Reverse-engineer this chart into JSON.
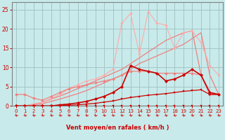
{
  "xlabel": "Vent moyen/en rafales ( km/h )",
  "xlim": [
    -0.5,
    23.5
  ],
  "ylim": [
    0,
    27
  ],
  "yticks": [
    0,
    5,
    10,
    15,
    20,
    25
  ],
  "xticks": [
    0,
    1,
    2,
    3,
    4,
    5,
    6,
    7,
    8,
    9,
    10,
    11,
    12,
    13,
    14,
    15,
    16,
    17,
    18,
    19,
    20,
    21,
    22,
    23
  ],
  "bg_color": "#c8eaea",
  "grid_color": "#a0c0c0",
  "lines": [
    {
      "x": [
        0,
        1,
        2,
        3,
        4,
        5,
        6,
        7,
        8,
        9,
        10,
        11,
        12,
        13,
        14,
        15,
        16,
        17,
        18,
        19,
        20,
        21,
        22,
        23
      ],
      "y": [
        0,
        0,
        0,
        0,
        0,
        0,
        0,
        0,
        0,
        0,
        0,
        0,
        0,
        0,
        0,
        0,
        0,
        0,
        0,
        0,
        0,
        0,
        0,
        0
      ],
      "color": "#cc0000",
      "lw": 0.8,
      "marker": "s",
      "ms": 2.0,
      "zorder": 6
    },
    {
      "x": [
        0,
        1,
        2,
        3,
        4,
        5,
        6,
        7,
        8,
        9,
        10,
        11,
        12,
        13,
        14,
        15,
        16,
        17,
        18,
        19,
        20,
        21,
        22,
        23
      ],
      "y": [
        0,
        0,
        0,
        0,
        0,
        0.1,
        0.2,
        0.3,
        0.5,
        0.7,
        1.0,
        1.3,
        1.8,
        2.2,
        2.5,
        2.8,
        3.0,
        3.2,
        3.5,
        3.8,
        4.0,
        4.2,
        3.0,
        3.0
      ],
      "color": "#cc0000",
      "lw": 0.9,
      "marker": "s",
      "ms": 2.0,
      "zorder": 5
    },
    {
      "x": [
        0,
        1,
        2,
        3,
        4,
        5,
        6,
        7,
        8,
        9,
        10,
        11,
        12,
        13,
        14,
        15,
        16,
        17,
        18,
        19,
        20,
        21,
        22,
        23
      ],
      "y": [
        0,
        0,
        0,
        0,
        0,
        0.3,
        0.5,
        0.8,
        1.2,
        1.8,
        2.5,
        3.5,
        5.0,
        10.5,
        9.5,
        9.0,
        8.5,
        6.5,
        7.0,
        8.0,
        9.5,
        8.0,
        3.5,
        3.0
      ],
      "color": "#cc0000",
      "lw": 1.2,
      "marker": "D",
      "ms": 2.2,
      "zorder": 6
    },
    {
      "x": [
        0,
        1,
        2,
        3,
        4,
        5,
        6,
        7,
        8,
        9,
        10,
        11,
        12,
        13,
        14,
        15,
        16,
        17,
        18,
        19,
        20,
        21,
        22,
        23
      ],
      "y": [
        0,
        0,
        0.3,
        0.6,
        1.2,
        1.8,
        2.5,
        3.2,
        4.0,
        5.0,
        6.0,
        7.0,
        8.0,
        9.5,
        11.0,
        12.0,
        13.0,
        14.0,
        15.0,
        16.0,
        17.5,
        19.0,
        8.0,
        3.0
      ],
      "color": "#f08080",
      "lw": 0.9,
      "marker": null,
      "ms": 0,
      "zorder": 2
    },
    {
      "x": [
        0,
        1,
        2,
        3,
        4,
        5,
        6,
        7,
        8,
        9,
        10,
        11,
        12,
        13,
        14,
        15,
        16,
        17,
        18,
        19,
        20,
        21,
        22,
        23
      ],
      "y": [
        0,
        0,
        0.5,
        1.0,
        1.8,
        2.6,
        3.5,
        4.5,
        5.5,
        6.5,
        7.5,
        8.5,
        9.5,
        11.0,
        12.5,
        14.0,
        15.5,
        17.0,
        18.0,
        19.0,
        19.5,
        8.0,
        3.0,
        3.0
      ],
      "color": "#f08080",
      "lw": 0.9,
      "marker": null,
      "ms": 0,
      "zorder": 2
    },
    {
      "x": [
        0,
        1,
        2,
        3,
        4,
        5,
        6,
        7,
        8,
        9,
        10,
        11,
        12,
        13,
        14,
        15,
        16,
        17,
        18,
        19,
        20,
        21,
        22,
        23
      ],
      "y": [
        3,
        3,
        2,
        1.5,
        2.5,
        3.5,
        4.5,
        5.0,
        5.5,
        6.0,
        6.5,
        7.0,
        8.0,
        9.0,
        9.0,
        9.0,
        8.5,
        8.5,
        8.5,
        8.5,
        8.5,
        8.0,
        3.0,
        3.0
      ],
      "color": "#f08080",
      "lw": 0.9,
      "marker": "D",
      "ms": 2.0,
      "zorder": 3
    },
    {
      "x": [
        0,
        1,
        2,
        3,
        4,
        5,
        6,
        7,
        8,
        9,
        10,
        11,
        12,
        13,
        14,
        15,
        16,
        17,
        18,
        19,
        20,
        21,
        22,
        23
      ],
      "y": [
        0,
        0,
        0.5,
        1.0,
        2.0,
        3.0,
        4.5,
        5.5,
        6.5,
        7.0,
        8.0,
        9.5,
        21.5,
        24.0,
        13.5,
        24.5,
        21.5,
        21.0,
        15.0,
        19.0,
        19.5,
        16.5,
        10.5,
        8.0
      ],
      "color": "#ffaaaa",
      "lw": 0.8,
      "marker": "D",
      "ms": 1.8,
      "zorder": 2
    }
  ],
  "arrow_color": "#cc0000",
  "xlabel_color": "#cc0000",
  "tick_color": "#cc0000",
  "axis_color": "#808080"
}
